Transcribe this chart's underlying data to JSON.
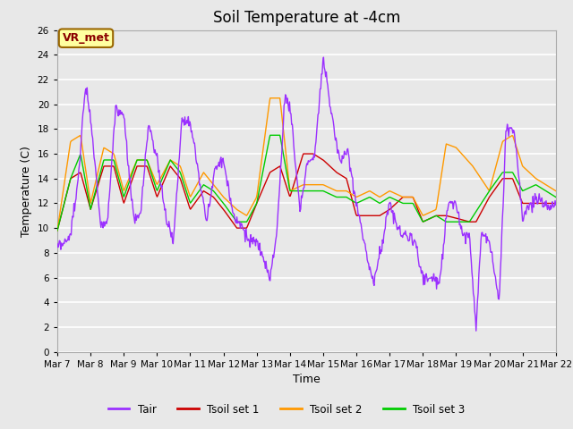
{
  "title": "Soil Temperature at -4cm",
  "xlabel": "Time",
  "ylabel": "Temperature (C)",
  "ylim": [
    0,
    26
  ],
  "yticks": [
    0,
    2,
    4,
    6,
    8,
    10,
    12,
    14,
    16,
    18,
    20,
    22,
    24,
    26
  ],
  "x_tick_labels": [
    "Mar 7",
    "Mar 8",
    "Mar 9",
    "Mar 10",
    "Mar 11",
    "Mar 12",
    "Mar 13",
    "Mar 14",
    "Mar 15",
    "Mar 16",
    "Mar 17",
    "Mar 18",
    "Mar 19",
    "Mar 20",
    "Mar 21",
    "Mar 22"
  ],
  "legend_entries": [
    "Tair",
    "Tsoil set 1",
    "Tsoil set 2",
    "Tsoil set 3"
  ],
  "line_colors": [
    "#9B30FF",
    "#CC0000",
    "#FF9900",
    "#00CC00"
  ],
  "annotation_text": "VR_met",
  "annotation_bg": "#FFFFA0",
  "annotation_border": "#996600",
  "plot_bg": "#E8E8E8",
  "grid_color": "#FFFFFF",
  "title_fontsize": 12,
  "label_fontsize": 9,
  "tick_fontsize": 7.5,
  "n_days": 15,
  "tair_xp": [
    0,
    0.35,
    0.6,
    0.85,
    1.0,
    1.3,
    1.5,
    1.75,
    2.0,
    2.3,
    2.5,
    2.75,
    3.0,
    3.3,
    3.5,
    3.75,
    4.0,
    4.3,
    4.5,
    4.75,
    5.0,
    5.3,
    5.5,
    5.75,
    6.0,
    6.2,
    6.4,
    6.6,
    6.85,
    7.0,
    7.3,
    7.5,
    7.75,
    8.0,
    8.3,
    8.5,
    8.75,
    9.0,
    9.3,
    9.5,
    9.75,
    10.0,
    10.3,
    10.5,
    10.75,
    11.0,
    11.3,
    11.5,
    11.75,
    12.0,
    12.2,
    12.4,
    12.6,
    12.75,
    13.0,
    13.3,
    13.5,
    13.75,
    14.0,
    14.3,
    14.5,
    14.75,
    15.0
  ],
  "tair_yp": [
    8.3,
    9.0,
    13.0,
    21.7,
    19.0,
    10.5,
    10.3,
    19.5,
    19.0,
    10.5,
    11.0,
    18.5,
    15.5,
    10.5,
    9.0,
    19.0,
    18.5,
    13.5,
    10.5,
    15.0,
    15.5,
    11.0,
    10.5,
    9.0,
    8.8,
    7.5,
    6.0,
    9.5,
    20.6,
    20.0,
    11.5,
    15.0,
    16.0,
    24.0,
    18.3,
    15.5,
    16.0,
    12.0,
    8.0,
    5.5,
    8.5,
    12.0,
    9.5,
    9.5,
    9.0,
    6.0,
    6.0,
    5.5,
    12.0,
    12.0,
    9.5,
    9.5,
    2.0,
    9.5,
    9.0,
    4.0,
    18.0,
    18.0,
    11.0,
    12.0,
    12.5,
    11.5,
    12.0
  ],
  "ts1_xp": [
    0,
    0.4,
    0.7,
    1.0,
    1.4,
    1.7,
    2.0,
    2.4,
    2.7,
    3.0,
    3.4,
    3.7,
    4.0,
    4.4,
    4.7,
    5.0,
    5.4,
    5.7,
    6.0,
    6.4,
    6.7,
    7.0,
    7.4,
    7.7,
    8.0,
    8.4,
    8.7,
    9.0,
    9.4,
    9.7,
    10.0,
    10.4,
    10.7,
    11.0,
    11.4,
    11.7,
    12.0,
    12.4,
    12.6,
    13.0,
    13.4,
    13.7,
    14.0,
    14.4,
    14.7,
    15.0
  ],
  "ts1_yp": [
    9.8,
    14.0,
    14.5,
    11.5,
    15.0,
    15.0,
    12.0,
    15.0,
    15.0,
    12.5,
    15.0,
    14.0,
    11.5,
    13.0,
    12.5,
    11.5,
    10.0,
    10.0,
    12.0,
    14.5,
    15.0,
    12.5,
    16.0,
    16.0,
    15.5,
    14.5,
    14.0,
    11.0,
    11.0,
    11.0,
    11.5,
    12.5,
    12.5,
    10.5,
    11.0,
    11.0,
    10.8,
    10.5,
    10.5,
    12.5,
    14.0,
    14.0,
    12.0,
    12.0,
    12.0,
    12.0
  ],
  "ts2_xp": [
    0,
    0.4,
    0.7,
    1.0,
    1.4,
    1.7,
    2.0,
    2.4,
    2.7,
    3.0,
    3.4,
    3.7,
    4.0,
    4.4,
    4.7,
    5.0,
    5.4,
    5.7,
    6.0,
    6.4,
    6.7,
    7.0,
    7.4,
    7.7,
    8.0,
    8.4,
    8.7,
    9.0,
    9.4,
    9.7,
    10.0,
    10.4,
    10.7,
    11.0,
    11.4,
    11.7,
    12.0,
    12.5,
    13.0,
    13.4,
    13.7,
    14.0,
    14.4,
    14.7,
    15.0
  ],
  "ts2_yp": [
    9.8,
    17.0,
    17.5,
    12.0,
    16.5,
    16.0,
    13.0,
    15.5,
    15.5,
    13.5,
    15.5,
    15.0,
    12.5,
    14.5,
    13.5,
    12.5,
    11.5,
    11.0,
    12.5,
    20.5,
    20.5,
    13.0,
    13.5,
    13.5,
    13.5,
    13.0,
    13.0,
    12.5,
    13.0,
    12.5,
    13.0,
    12.5,
    12.5,
    11.0,
    11.5,
    16.8,
    16.5,
    15.0,
    13.0,
    17.0,
    17.5,
    15.0,
    14.0,
    13.5,
    13.0
  ],
  "ts3_xp": [
    0,
    0.4,
    0.7,
    1.0,
    1.4,
    1.7,
    2.0,
    2.4,
    2.7,
    3.0,
    3.4,
    3.7,
    4.0,
    4.4,
    4.7,
    5.0,
    5.4,
    5.7,
    6.0,
    6.4,
    6.7,
    7.0,
    7.4,
    7.7,
    8.0,
    8.4,
    8.7,
    9.0,
    9.4,
    9.7,
    10.0,
    10.4,
    10.7,
    11.0,
    11.4,
    11.7,
    12.0,
    12.4,
    13.0,
    13.4,
    13.7,
    14.0,
    14.4,
    14.7,
    15.0
  ],
  "ts3_yp": [
    9.8,
    14.0,
    16.0,
    11.5,
    15.5,
    15.5,
    12.5,
    15.5,
    15.5,
    13.0,
    15.5,
    14.5,
    12.0,
    13.5,
    13.0,
    12.0,
    10.5,
    10.5,
    12.0,
    17.5,
    17.5,
    13.0,
    13.0,
    13.0,
    13.0,
    12.5,
    12.5,
    12.0,
    12.5,
    12.0,
    12.5,
    12.0,
    12.0,
    10.5,
    11.0,
    10.5,
    10.5,
    10.5,
    13.0,
    14.5,
    14.5,
    13.0,
    13.5,
    13.0,
    12.5
  ]
}
